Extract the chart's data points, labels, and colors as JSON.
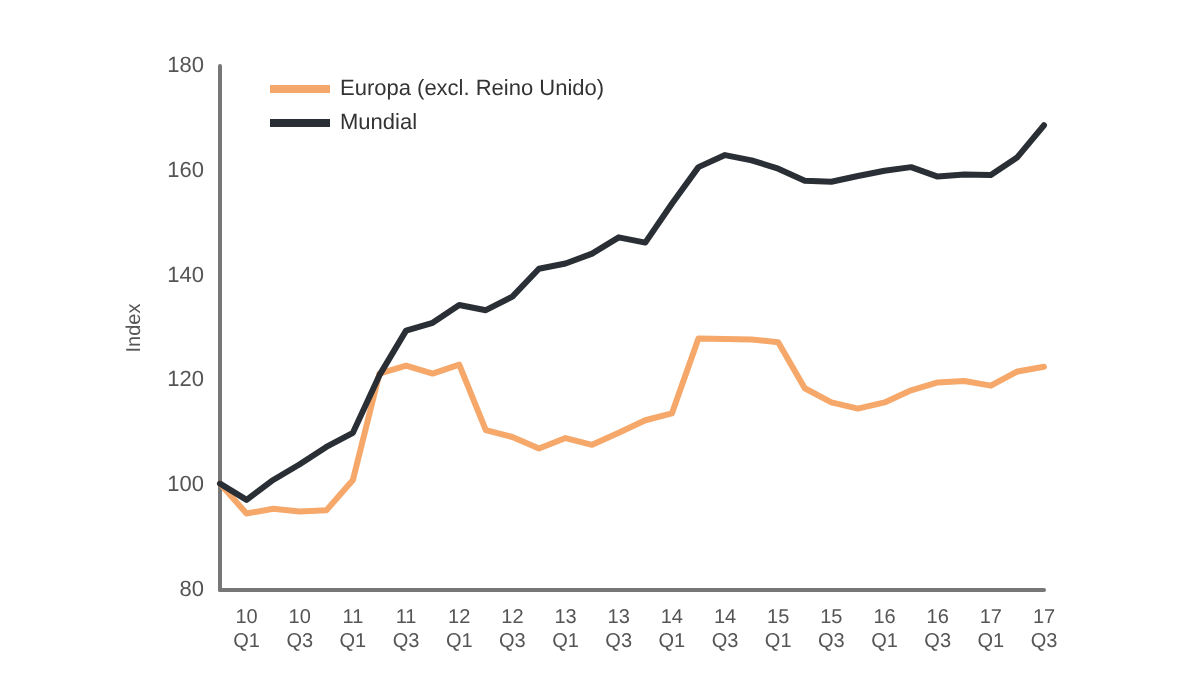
{
  "chart_data": {
    "type": "line",
    "ylabel": "Index",
    "categories": [
      null,
      "10\nQ1",
      null,
      "10\nQ3",
      null,
      "11\nQ1",
      null,
      "11\nQ3",
      null,
      "12\nQ1",
      null,
      "12\nQ3",
      null,
      "13\nQ1",
      null,
      "13\nQ3",
      null,
      "14\nQ1",
      null,
      "14\nQ3",
      null,
      "15\nQ1",
      null,
      "15\nQ3",
      null,
      "16\nQ1",
      null,
      "16\nQ3",
      null,
      "17\nQ1",
      null,
      "17\nQ3"
    ],
    "series": [
      {
        "name": "Europa (excl. Reino Unido)",
        "color": "#f5a86a",
        "values": [
          100.3,
          94.6,
          95.5,
          95,
          95.2,
          101,
          121.3,
          122.8,
          121.3,
          123,
          110.5,
          109.2,
          107,
          109,
          107.7,
          110,
          112.4,
          113.7,
          128,
          127.9,
          127.8,
          127.3,
          118.5,
          115.8,
          114.6,
          115.8,
          118.1,
          119.6,
          119.9,
          119,
          121.7,
          122.6
        ]
      },
      {
        "name": "Mundial",
        "color": "#2a2f36",
        "values": [
          100.3,
          97.2,
          101,
          104,
          107.3,
          110,
          121,
          129.5,
          131,
          134.4,
          133.4,
          136,
          141.3,
          142.3,
          144.2,
          147.3,
          146.3,
          153.7,
          160.7,
          163,
          162,
          160.4,
          158.1,
          157.9,
          159,
          160,
          160.7,
          158.9,
          159.3,
          159.2,
          162.6,
          168.7
        ]
      }
    ],
    "ylim": [
      80,
      180
    ],
    "yticks": [
      80,
      100,
      120,
      140,
      160,
      180
    ],
    "grid": false,
    "legend": "top left",
    "marker": "none",
    "line_style": "solid"
  }
}
